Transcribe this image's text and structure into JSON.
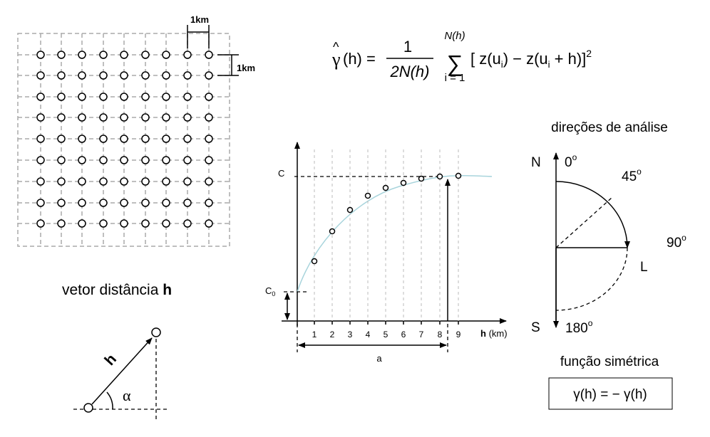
{
  "grid": {
    "scale_top": "1km",
    "scale_right": "1km"
  },
  "formula": {
    "gamma": "γ",
    "hat": "^",
    "lhs": "(h) =",
    "numerator": "1",
    "denominator": "2N(h)",
    "sum": "∑",
    "upper": "N(h)",
    "lower": "i = 1",
    "body": "[ z(u",
    "sub1": "i",
    "mid": ") − z(u",
    "sub2": "i",
    "tail": " + h)]",
    "power": "2"
  },
  "vector": {
    "title": "vetor distância",
    "title_bold": "h",
    "label": "h",
    "angle": "α"
  },
  "variogram": {
    "sill": "C",
    "nugget": "C",
    "nugget_sub": "0",
    "ticks": [
      "1",
      "2",
      "3",
      "4",
      "5",
      "6",
      "7",
      "8",
      "9"
    ],
    "x_label": "h",
    "x_unit": "(km)",
    "range": "a"
  },
  "directions": {
    "title": "direções de análise",
    "north": "N",
    "south": "S",
    "east": "L",
    "d0": "0",
    "d45": "45",
    "d90": "90",
    "d180": "180",
    "deg": "o"
  },
  "symmetry": {
    "title": "função simétrica",
    "formula": "γ(h) = − γ(h)"
  }
}
